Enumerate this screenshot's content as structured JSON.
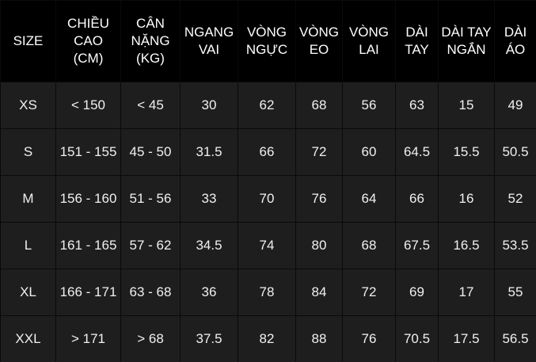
{
  "table": {
    "headers": [
      {
        "lines": [
          "SIZE"
        ]
      },
      {
        "lines": [
          "CHIỀU",
          "CAO",
          "(CM)"
        ]
      },
      {
        "lines": [
          "CÂN",
          "NẶNG",
          "(KG)"
        ]
      },
      {
        "lines": [
          "NGANG",
          "VAI"
        ]
      },
      {
        "lines": [
          "VÒNG",
          "NGỰC"
        ]
      },
      {
        "lines": [
          "VÒNG",
          "EO"
        ]
      },
      {
        "lines": [
          "VÒNG",
          "LAI"
        ]
      },
      {
        "lines": [
          "DÀI",
          "TAY"
        ]
      },
      {
        "lines": [
          "DÀI TAY",
          "NGẮN"
        ]
      },
      {
        "lines": [
          "DÀI",
          "ÁO"
        ]
      }
    ],
    "rows": [
      [
        "XS",
        "< 150",
        "< 45",
        "30",
        "62",
        "68",
        "56",
        "63",
        "15",
        "49"
      ],
      [
        "S",
        "151 - 155",
        "45 - 50",
        "31.5",
        "66",
        "72",
        "60",
        "64.5",
        "15.5",
        "50.5"
      ],
      [
        "M",
        "156 - 160",
        "51 - 56",
        "33",
        "70",
        "76",
        "64",
        "66",
        "16",
        "52"
      ],
      [
        "L",
        "161 - 165",
        "57 - 62",
        "34.5",
        "74",
        "80",
        "68",
        "67.5",
        "16.5",
        "53.5"
      ],
      [
        "XL",
        "166 - 171",
        "63 - 68",
        "36",
        "78",
        "84",
        "72",
        "69",
        "17",
        "55"
      ],
      [
        "XXL",
        "> 171",
        "> 68",
        "37.5",
        "82",
        "88",
        "76",
        "70.5",
        "17.5",
        "56.5"
      ]
    ]
  },
  "colors": {
    "background": "#1e1e1e",
    "header_background": "#000000",
    "text": "#f0f0f0",
    "border": "#0a0a0a"
  }
}
